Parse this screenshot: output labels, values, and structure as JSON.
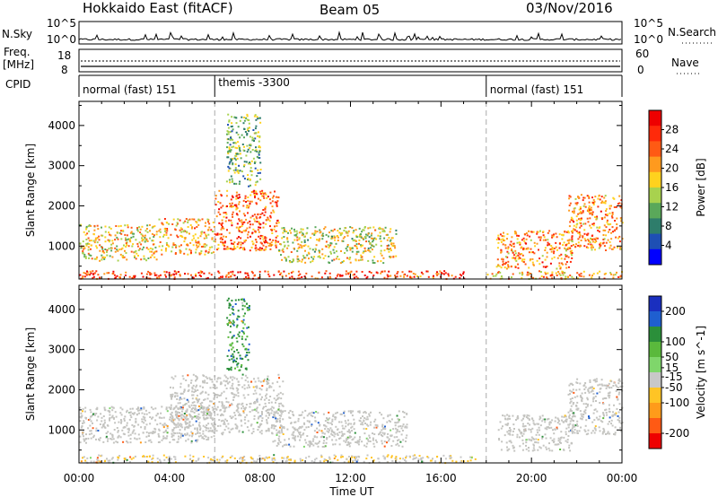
{
  "header": {
    "station": "Hokkaido East (fitACF)",
    "beam": "Beam 05",
    "date": "03/Nov/2016"
  },
  "param_panel": {
    "nsky_label": "N.Sky",
    "nsky_ticks": [
      "10^5",
      "10^0"
    ],
    "nsearch_label": "N.Search",
    "nsearch_ticks": [
      "10^5",
      "10^0"
    ],
    "freq_label_1": "Freq.",
    "freq_label_2": "[MHz]",
    "freq_ticks": [
      "18",
      "8"
    ],
    "nave_label": "Nave",
    "nave_ticks": [
      "60",
      "0"
    ],
    "cpid_label": "CPID",
    "cpid_segments": [
      {
        "label": "normal (fast) 151",
        "start_hour": 0,
        "end_hour": 6
      },
      {
        "label": "themis -3300",
        "start_hour": 6,
        "end_hour": 18
      },
      {
        "label": "normal (fast) 151",
        "start_hour": 18,
        "end_hour": 24
      }
    ]
  },
  "colors": {
    "power_scale": [
      "#0000ff",
      "#1e4fb4",
      "#2e7d6b",
      "#5aa85a",
      "#a8d24e",
      "#ffd21e",
      "#ff9a1e",
      "#ff5a14",
      "#ff2a0a",
      "#ee0000"
    ],
    "velocity_scale": [
      "#1a2fbf",
      "#1f5fd0",
      "#2b8f3a",
      "#5ab93c",
      "#7fd66b",
      "#c8c8c8",
      "#ffc425",
      "#ff9b1a",
      "#ff5a14",
      "#ee0000"
    ],
    "velocity_gray": "#c4c4c0"
  },
  "chart_data": [
    {
      "type": "heatmap",
      "name": "power",
      "ylabel": "Slant Range [km]",
      "xlabel": "Time UT",
      "x_ticks": [
        "00:00",
        "04:00",
        "08:00",
        "12:00",
        "16:00",
        "20:00",
        "00:00"
      ],
      "x_range_hours": [
        0,
        24
      ],
      "y_ticks": [
        1000,
        2000,
        3000,
        4000
      ],
      "ylim": [
        180,
        4600
      ],
      "colorbar": {
        "label": "Power [dB]",
        "ticks": [
          4,
          8,
          12,
          16,
          20,
          24,
          28
        ],
        "range": [
          0,
          32
        ]
      },
      "marker_lines_hours": [
        6,
        18
      ],
      "features": [
        {
          "t0": 0.0,
          "t1": 3.5,
          "r0": 650,
          "r1": 1550,
          "value": 18
        },
        {
          "t0": 3.5,
          "t1": 6.0,
          "r0": 800,
          "r1": 1700,
          "value": 20
        },
        {
          "t0": 6.0,
          "t1": 8.8,
          "r0": 900,
          "r1": 2400,
          "value": 24
        },
        {
          "t0": 8.8,
          "t1": 14.0,
          "r0": 600,
          "r1": 1500,
          "value": 16
        },
        {
          "t0": 0.0,
          "t1": 17.0,
          "r0": 200,
          "r1": 400,
          "value": 26
        },
        {
          "t0": 6.5,
          "t1": 8.0,
          "r0": 2500,
          "r1": 4300,
          "value": 12
        },
        {
          "t0": 18.0,
          "t1": 24.0,
          "r0": 200,
          "r1": 400,
          "value": 20
        },
        {
          "t0": 18.4,
          "t1": 21.8,
          "r0": 450,
          "r1": 1400,
          "value": 22
        },
        {
          "t0": 21.6,
          "t1": 24.0,
          "r0": 900,
          "r1": 2300,
          "value": 22
        }
      ]
    },
    {
      "type": "heatmap",
      "name": "velocity",
      "ylabel": "Slant Range [km]",
      "xlabel": "Time UT",
      "x_ticks": [
        "00:00",
        "04:00",
        "08:00",
        "12:00",
        "16:00",
        "20:00",
        "00:00"
      ],
      "x_range_hours": [
        0,
        24
      ],
      "y_ticks": [
        1000,
        2000,
        3000,
        4000
      ],
      "ylim": [
        180,
        4600
      ],
      "colorbar": {
        "label": "Velocity [m s^-1]",
        "ticks": [
          200,
          100,
          50,
          15,
          -15,
          -50,
          -100,
          -200
        ],
        "range": [
          -250,
          250
        ]
      },
      "marker_lines_hours": [
        6,
        18
      ],
      "features": [
        {
          "t0": 0.0,
          "t1": 6.0,
          "r0": 700,
          "r1": 1600,
          "value": 0
        },
        {
          "t0": 4.0,
          "t1": 9.0,
          "r0": 900,
          "r1": 2400,
          "value": 0
        },
        {
          "t0": 8.5,
          "t1": 14.5,
          "r0": 600,
          "r1": 1500,
          "value": 0
        },
        {
          "t0": 6.5,
          "t1": 7.5,
          "r0": 2500,
          "r1": 4300,
          "value": 120
        },
        {
          "t0": 0.0,
          "t1": 17.5,
          "r0": 200,
          "r1": 400,
          "value": -40
        },
        {
          "t0": 18.5,
          "t1": 21.8,
          "r0": 500,
          "r1": 1400,
          "value": 0
        },
        {
          "t0": 21.6,
          "t1": 24.0,
          "r0": 900,
          "r1": 2300,
          "value": 0
        }
      ]
    }
  ]
}
